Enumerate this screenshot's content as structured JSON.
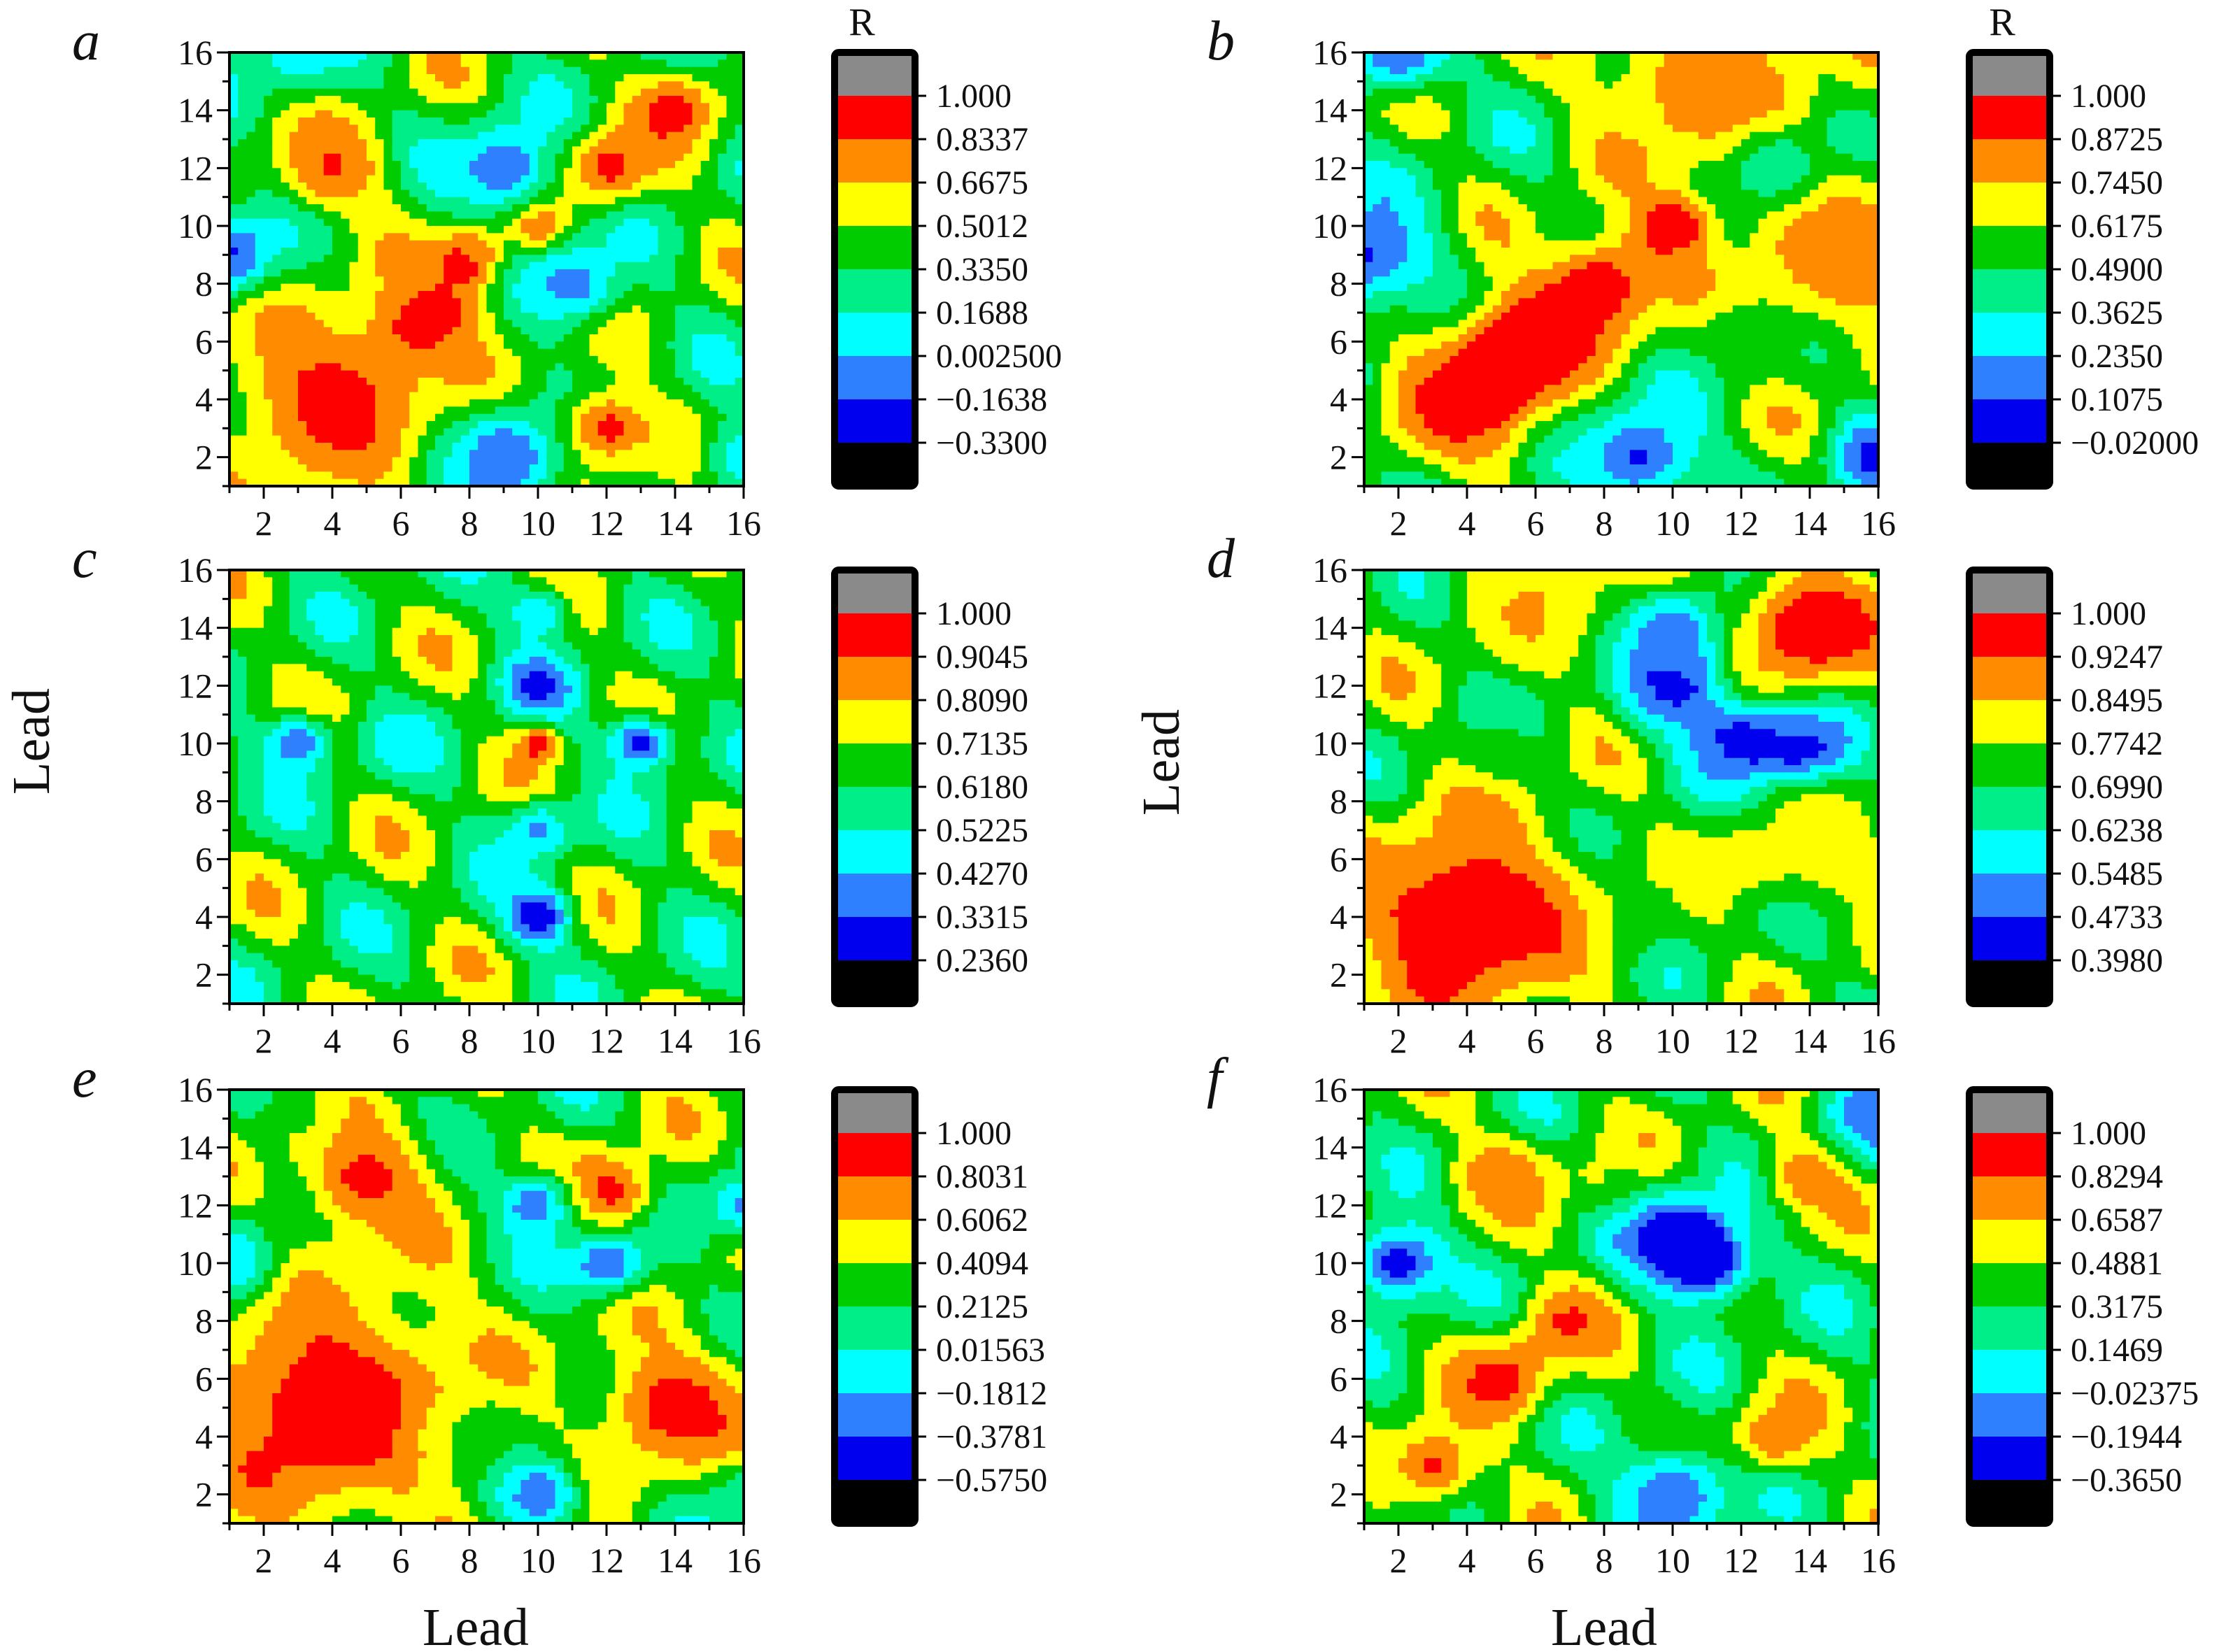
{
  "figure": {
    "x_axis_title": "Lead",
    "y_axis_title": "Lead",
    "unit_label": "R"
  },
  "colors": {
    "levels": [
      "#000000",
      "#0000ee",
      "#2f80ff",
      "#00ffff",
      "#00ee88",
      "#00cc00",
      "#ffff00",
      "#ff8c00",
      "#ff0000",
      "#8a8a8a"
    ]
  },
  "chart_data": [
    {
      "type": "heatmap",
      "panel": "a",
      "xlabel": "",
      "ylabel": "",
      "xlim": [
        1,
        16
      ],
      "ylim": [
        1,
        16
      ],
      "x_ticks": [
        "2",
        "4",
        "6",
        "8",
        "10",
        "12",
        "14",
        "16"
      ],
      "y_ticks": [
        "2",
        "4",
        "6",
        "8",
        "10",
        "12",
        "14",
        "16"
      ],
      "colorbar_title": "R",
      "colorbar_levels": [
        "1.000",
        "0.8337",
        "0.6675",
        "0.5012",
        "0.3350",
        "0.1688",
        "0.002500",
        "−0.1638",
        "−0.3300"
      ],
      "range": [
        -0.33,
        1.0
      ],
      "features": [
        {
          "x": 4,
          "y": 4,
          "v": 0.9,
          "s": 2.2
        },
        {
          "x": 7,
          "y": 7,
          "v": 0.85,
          "s": 1.2
        },
        {
          "x": 8,
          "y": 9,
          "v": 0.85,
          "s": 0.7
        },
        {
          "x": 10,
          "y": 10,
          "v": 0.95,
          "s": 0.5
        },
        {
          "x": 12,
          "y": 12,
          "v": 0.9,
          "s": 0.9
        },
        {
          "x": 14,
          "y": 14,
          "v": 0.9,
          "s": 0.9
        },
        {
          "x": 12,
          "y": 3,
          "v": 0.9,
          "s": 1.0
        },
        {
          "x": 4,
          "y": 12,
          "v": 0.85,
          "s": 1.1
        },
        {
          "x": 1,
          "y": 9,
          "v": -0.2,
          "s": 1.0
        },
        {
          "x": 9,
          "y": 2,
          "v": -0.2,
          "s": 1.2
        },
        {
          "x": 9,
          "y": 12,
          "v": -0.15,
          "s": 1.1
        },
        {
          "x": 11,
          "y": 8,
          "v": -0.1,
          "s": 1.0
        },
        {
          "x": 3,
          "y": 16,
          "v": 0.05,
          "s": 1.0
        },
        {
          "x": 16,
          "y": 2,
          "v": 0.05,
          "s": 0.9
        }
      ]
    },
    {
      "type": "heatmap",
      "panel": "b",
      "xlabel": "",
      "ylabel": "",
      "xlim": [
        1,
        16
      ],
      "ylim": [
        1,
        16
      ],
      "x_ticks": [
        "2",
        "4",
        "6",
        "8",
        "10",
        "12",
        "14",
        "16"
      ],
      "y_ticks": [
        "2",
        "4",
        "6",
        "8",
        "10",
        "12",
        "14",
        "16"
      ],
      "colorbar_title": "R",
      "colorbar_levels": [
        "1.000",
        "0.8725",
        "0.7450",
        "0.6175",
        "0.4900",
        "0.3625",
        "0.2350",
        "0.1075",
        "−0.02000"
      ],
      "range": [
        -0.02,
        1.0
      ],
      "features": [
        {
          "x": 4,
          "y": 4,
          "v": 0.95,
          "s": 1.6
        },
        {
          "x": 6,
          "y": 6,
          "v": 0.95,
          "s": 1.4
        },
        {
          "x": 8,
          "y": 8,
          "v": 0.9,
          "s": 1.3
        },
        {
          "x": 10,
          "y": 10,
          "v": 0.95,
          "s": 0.8
        },
        {
          "x": 15,
          "y": 9,
          "v": 0.85,
          "s": 2.0
        },
        {
          "x": 11,
          "y": 15,
          "v": 0.85,
          "s": 2.2
        },
        {
          "x": 1,
          "y": 9,
          "v": 0.1,
          "s": 1.4
        },
        {
          "x": 9,
          "y": 2,
          "v": 0.1,
          "s": 1.3
        },
        {
          "x": 16,
          "y": 2,
          "v": 0.05,
          "s": 0.9
        },
        {
          "x": 2,
          "y": 16,
          "v": 0.1,
          "s": 1.0
        },
        {
          "x": 13,
          "y": 12,
          "v": 0.2,
          "s": 0.9
        },
        {
          "x": 12,
          "y": 6,
          "v": 0.5,
          "s": 1.0
        }
      ]
    },
    {
      "type": "heatmap",
      "panel": "c",
      "xlabel": "",
      "ylabel": "Lead",
      "xlim": [
        1,
        16
      ],
      "ylim": [
        1,
        16
      ],
      "x_ticks": [
        "2",
        "4",
        "6",
        "8",
        "10",
        "12",
        "14",
        "16"
      ],
      "y_ticks": [
        "2",
        "4",
        "6",
        "8",
        "10",
        "12",
        "14",
        "16"
      ],
      "colorbar_title": "",
      "colorbar_levels": [
        "1.000",
        "0.9045",
        "0.8090",
        "0.7135",
        "0.6180",
        "0.5225",
        "0.4270",
        "0.3315",
        "0.2360"
      ],
      "range": [
        0.236,
        1.0
      ],
      "features": [
        {
          "x": 10,
          "y": 4,
          "v": 0.25,
          "s": 0.7
        },
        {
          "x": 10,
          "y": 7,
          "v": 0.4,
          "s": 0.7
        },
        {
          "x": 10,
          "y": 12,
          "v": 0.3,
          "s": 0.7
        },
        {
          "x": 10,
          "y": 14.5,
          "v": 0.45,
          "s": 0.7
        },
        {
          "x": 3,
          "y": 10,
          "v": 0.35,
          "s": 0.7
        },
        {
          "x": 6,
          "y": 10,
          "v": 0.45,
          "s": 0.7
        },
        {
          "x": 13,
          "y": 10,
          "v": 0.3,
          "s": 0.7
        },
        {
          "x": 10,
          "y": 10,
          "v": 1.0,
          "s": 0.4
        }
      ]
    },
    {
      "type": "heatmap",
      "panel": "d",
      "xlabel": "",
      "ylabel": "Lead",
      "xlim": [
        1,
        16
      ],
      "ylim": [
        1,
        16
      ],
      "x_ticks": [
        "2",
        "4",
        "6",
        "8",
        "10",
        "12",
        "14",
        "16"
      ],
      "y_ticks": [
        "2",
        "4",
        "6",
        "8",
        "10",
        "12",
        "14",
        "16"
      ],
      "colorbar_title": "",
      "colorbar_levels": [
        "1.000",
        "0.9247",
        "0.8495",
        "0.7742",
        "0.6990",
        "0.6238",
        "0.5485",
        "0.4733",
        "0.3980"
      ],
      "range": [
        0.398,
        1.0
      ],
      "features": [
        {
          "x": 10,
          "y": 12,
          "v": 0.45,
          "s": 1.1
        },
        {
          "x": 10,
          "y": 14,
          "v": 0.5,
          "s": 0.9
        },
        {
          "x": 12,
          "y": 10,
          "v": 0.45,
          "s": 1.0
        },
        {
          "x": 14,
          "y": 10,
          "v": 0.45,
          "s": 0.9
        },
        {
          "x": 9,
          "y": 4,
          "v": 0.7,
          "s": 1.0
        },
        {
          "x": 5,
          "y": 10,
          "v": 0.7,
          "s": 1.0
        },
        {
          "x": 15,
          "y": 6,
          "v": 0.8,
          "s": 1.5
        },
        {
          "x": 6,
          "y": 15,
          "v": 0.85,
          "s": 1.6
        },
        {
          "x": 12,
          "y": 6,
          "v": 0.8,
          "s": 1.0
        },
        {
          "x": 4,
          "y": 4,
          "v": 1.0,
          "s": 2.5
        },
        {
          "x": 14,
          "y": 14,
          "v": 1.0,
          "s": 1.5
        }
      ]
    },
    {
      "type": "heatmap",
      "panel": "e",
      "xlabel": "Lead",
      "ylabel": "",
      "xlim": [
        1,
        16
      ],
      "ylim": [
        1,
        16
      ],
      "x_ticks": [
        "2",
        "4",
        "6",
        "8",
        "10",
        "12",
        "14",
        "16"
      ],
      "y_ticks": [
        "2",
        "4",
        "6",
        "8",
        "10",
        "12",
        "14",
        "16"
      ],
      "colorbar_title": "",
      "colorbar_levels": [
        "1.000",
        "0.8031",
        "0.6062",
        "0.4094",
        "0.2125",
        "0.01563",
        "−0.1812",
        "−0.3781",
        "−0.5750"
      ],
      "range": [
        -0.575,
        1.0
      ],
      "features": [
        {
          "x": 4,
          "y": 5,
          "v": 0.95,
          "s": 3.0
        },
        {
          "x": 14,
          "y": 5,
          "v": 0.9,
          "s": 1.6
        },
        {
          "x": 12,
          "y": 12.5,
          "v": 0.9,
          "s": 1.0
        },
        {
          "x": 5,
          "y": 13,
          "v": 0.85,
          "s": 1.4
        },
        {
          "x": 10,
          "y": 12,
          "v": -0.4,
          "s": 0.8
        },
        {
          "x": 12,
          "y": 10,
          "v": -0.4,
          "s": 0.8
        },
        {
          "x": 1,
          "y": 10,
          "v": -0.3,
          "s": 1.0
        },
        {
          "x": 10,
          "y": 2,
          "v": -0.4,
          "s": 0.9
        },
        {
          "x": 16,
          "y": 12,
          "v": -0.2,
          "s": 0.8
        },
        {
          "x": 8,
          "y": 4,
          "v": 0.1,
          "s": 1.1
        },
        {
          "x": 3,
          "y": 15,
          "v": 0.3,
          "s": 0.9
        },
        {
          "x": 16,
          "y": 2,
          "v": 0.0,
          "s": 0.8
        }
      ]
    },
    {
      "type": "heatmap",
      "panel": "f",
      "xlabel": "Lead",
      "ylabel": "",
      "xlim": [
        1,
        16
      ],
      "ylim": [
        1,
        16
      ],
      "x_ticks": [
        "2",
        "4",
        "6",
        "8",
        "10",
        "12",
        "14",
        "16"
      ],
      "y_ticks": [
        "2",
        "4",
        "6",
        "8",
        "10",
        "12",
        "14",
        "16"
      ],
      "colorbar_title": "",
      "colorbar_levels": [
        "1.000",
        "0.8294",
        "0.6587",
        "0.4881",
        "0.3175",
        "0.1469",
        "−0.02375",
        "−0.1944",
        "−0.3650"
      ],
      "range": [
        -0.365,
        1.0
      ],
      "features": [
        {
          "x": 10,
          "y": 11,
          "v": -0.35,
          "s": 1.0
        },
        {
          "x": 11,
          "y": 10,
          "v": -0.3,
          "s": 1.0
        },
        {
          "x": 2,
          "y": 10,
          "v": -0.3,
          "s": 1.0
        },
        {
          "x": 10,
          "y": 2,
          "v": -0.2,
          "s": 1.2
        },
        {
          "x": 16,
          "y": 15,
          "v": -0.2,
          "s": 1.0
        },
        {
          "x": 5,
          "y": 6,
          "v": 0.9,
          "s": 1.0
        },
        {
          "x": 7,
          "y": 8,
          "v": 0.85,
          "s": 0.9
        },
        {
          "x": 3,
          "y": 3,
          "v": 0.85,
          "s": 1.0
        },
        {
          "x": 13,
          "y": 4,
          "v": 0.8,
          "s": 0.9
        },
        {
          "x": 14,
          "y": 13,
          "v": 0.8,
          "s": 0.9
        },
        {
          "x": 5,
          "y": 13,
          "v": 0.8,
          "s": 1.0
        },
        {
          "x": 8,
          "y": 13,
          "v": 0.5,
          "s": 0.9
        }
      ]
    }
  ]
}
